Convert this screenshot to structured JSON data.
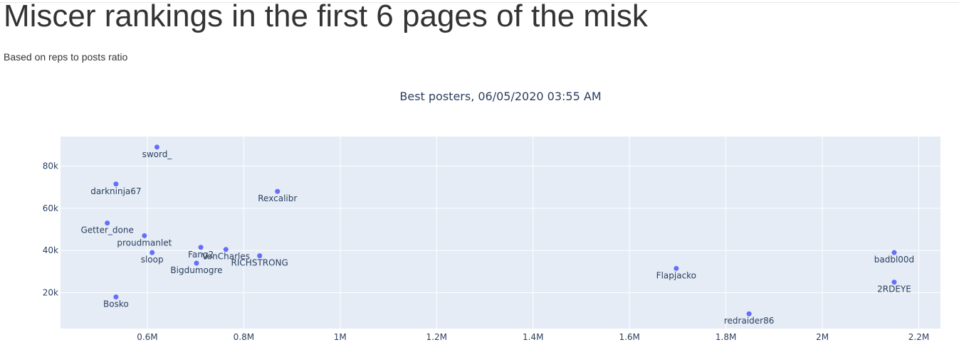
{
  "page": {
    "title": "Miscer rankings in the first 6 pages of the misk",
    "subtitle": "Based on reps to posts ratio"
  },
  "colors": {
    "plot_background": "#e5ecf6",
    "grid": "#ffffff",
    "marker": "#636efa",
    "text": "#2a3f5f"
  },
  "chart_data": {
    "type": "scatter",
    "title": "Best posters, 06/05/2020 03:55 AM",
    "xlabel": "",
    "ylabel": "",
    "xlim": [
      420000,
      2245000
    ],
    "ylim": [
      3000,
      94000
    ],
    "x_ticks": [
      {
        "value": 600000,
        "label": "0.6M"
      },
      {
        "value": 800000,
        "label": "0.8M"
      },
      {
        "value": 1000000,
        "label": "1M"
      },
      {
        "value": 1200000,
        "label": "1.2M"
      },
      {
        "value": 1400000,
        "label": "1.4M"
      },
      {
        "value": 1600000,
        "label": "1.6M"
      },
      {
        "value": 1800000,
        "label": "1.8M"
      },
      {
        "value": 2000000,
        "label": "2M"
      },
      {
        "value": 2200000,
        "label": "2.2M"
      }
    ],
    "y_ticks": [
      {
        "value": 20000,
        "label": "20k"
      },
      {
        "value": 40000,
        "label": "40k"
      },
      {
        "value": 60000,
        "label": "60k"
      },
      {
        "value": 80000,
        "label": "80k"
      }
    ],
    "grid": true,
    "points": [
      {
        "label": "sword_",
        "x": 620000,
        "y": 89000
      },
      {
        "label": "darkninja67",
        "x": 535000,
        "y": 71500
      },
      {
        "label": "Rexcalibr",
        "x": 870000,
        "y": 68000
      },
      {
        "label": "Getter_done",
        "x": 517000,
        "y": 53000
      },
      {
        "label": "proudmanlet",
        "x": 594000,
        "y": 47000
      },
      {
        "label": "Fang2",
        "x": 711000,
        "y": 41500
      },
      {
        "label": "VonCharles",
        "x": 763000,
        "y": 40500
      },
      {
        "label": "sloop",
        "x": 610000,
        "y": 39000
      },
      {
        "label": "RICHSTRONG",
        "x": 833000,
        "y": 37500
      },
      {
        "label": "Bigdumogre",
        "x": 702000,
        "y": 34000
      },
      {
        "label": "Bosko",
        "x": 535000,
        "y": 18000
      },
      {
        "label": "Flapjacko",
        "x": 1697000,
        "y": 31500
      },
      {
        "label": "redraider86",
        "x": 1848000,
        "y": 10000
      },
      {
        "label": "badbl00d",
        "x": 2149000,
        "y": 39000
      },
      {
        "label": "2RDEYE",
        "x": 2149000,
        "y": 25000
      }
    ]
  }
}
